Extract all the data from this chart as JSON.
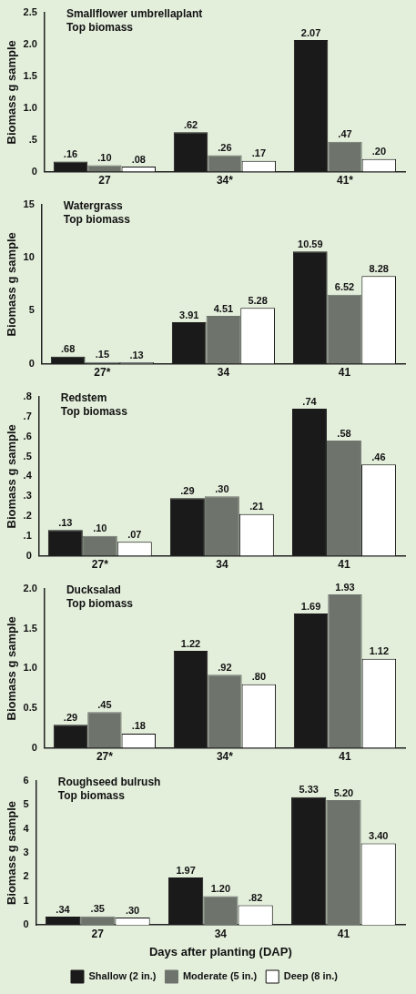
{
  "chart_data": [
    {
      "type": "bar",
      "title": "Smallflower umbrellaplant",
      "subtitle": "Top biomass",
      "ylabel": "Biomass g sample",
      "categories": [
        "27",
        "34*",
        "41*"
      ],
      "ylim": [
        0,
        2.5
      ],
      "yticks": [
        0,
        {
          "value": 0.5,
          "label": ".5"
        },
        {
          "value": 1,
          "label": "1.0"
        },
        {
          "value": 1.5,
          "label": "1.5"
        },
        {
          "value": 2,
          "label": "2.0"
        },
        {
          "value": 2.5,
          "label": "2.5"
        }
      ],
      "grid": false,
      "legend": false,
      "series": [
        {
          "color": "#1a1a1a",
          "values": [
            0.16,
            0.62,
            2.07
          ],
          "value_labels": [
            ".16",
            ".62",
            "2.07"
          ]
        },
        {
          "color": "#6e746c",
          "values": [
            0.1,
            0.26,
            0.47
          ],
          "value_labels": [
            ".10",
            ".26",
            ".47"
          ]
        },
        {
          "color": "#ffffff",
          "values": [
            0.08,
            0.17,
            0.2
          ],
          "value_labels": [
            ".08",
            ".17",
            ".20"
          ]
        }
      ]
    },
    {
      "type": "bar",
      "title": "Watergrass",
      "subtitle": "Top biomass",
      "ylabel": "Biomass g sample",
      "categories": [
        "27*",
        "34",
        "41"
      ],
      "ylim": [
        0,
        15
      ],
      "yticks": [
        0,
        5,
        10,
        15
      ],
      "grid": false,
      "legend": false,
      "series": [
        {
          "color": "#1a1a1a",
          "values": [
            0.68,
            3.91,
            10.59
          ],
          "value_labels": [
            ".68",
            "3.91",
            "10.59"
          ]
        },
        {
          "color": "#6e746c",
          "values": [
            0.15,
            4.51,
            6.52
          ],
          "value_labels": [
            ".15",
            "4.51",
            "6.52"
          ]
        },
        {
          "color": "#ffffff",
          "values": [
            0.13,
            5.28,
            8.28
          ],
          "value_labels": [
            ".13",
            "5.28",
            "8.28"
          ]
        }
      ]
    },
    {
      "type": "bar",
      "title": "Redstem",
      "subtitle": "Top biomass",
      "ylabel": "Biomass g sample",
      "categories": [
        "27*",
        "34",
        "41"
      ],
      "ylim": [
        0,
        0.8
      ],
      "yticks": [
        0,
        {
          "value": 0.1,
          "label": ".1"
        },
        {
          "value": 0.2,
          "label": ".2"
        },
        {
          "value": 0.3,
          "label": ".3"
        },
        {
          "value": 0.4,
          "label": ".4"
        },
        {
          "value": 0.5,
          "label": ".5"
        },
        {
          "value": 0.6,
          "label": ".6"
        },
        {
          "value": 0.7,
          "label": ".7"
        },
        {
          "value": 0.8,
          "label": ".8"
        }
      ],
      "grid": false,
      "legend": false,
      "series": [
        {
          "color": "#1a1a1a",
          "values": [
            0.13,
            0.29,
            0.74
          ],
          "value_labels": [
            ".13",
            ".29",
            ".74"
          ]
        },
        {
          "color": "#6e746c",
          "values": [
            0.1,
            0.3,
            0.58
          ],
          "value_labels": [
            ".10",
            ".30",
            ".58"
          ]
        },
        {
          "color": "#ffffff",
          "values": [
            0.07,
            0.21,
            0.46
          ],
          "value_labels": [
            ".07",
            ".21",
            ".46"
          ]
        }
      ]
    },
    {
      "type": "bar",
      "title": "Ducksalad",
      "subtitle": "Top biomass",
      "ylabel": "Biomass g sample",
      "categories": [
        "27*",
        "34*",
        "41"
      ],
      "ylim": [
        0,
        2.0
      ],
      "yticks": [
        0,
        0.5,
        {
          "value": 1,
          "label": "1.0"
        },
        1.5,
        {
          "value": 2,
          "label": "2.0"
        }
      ],
      "grid": false,
      "legend": false,
      "series": [
        {
          "color": "#1a1a1a",
          "values": [
            0.29,
            1.22,
            1.69
          ],
          "value_labels": [
            ".29",
            "1.22",
            "1.69"
          ]
        },
        {
          "color": "#6e746c",
          "values": [
            0.45,
            0.92,
            1.93
          ],
          "value_labels": [
            ".45",
            ".92",
            "1.93"
          ]
        },
        {
          "color": "#ffffff",
          "values": [
            0.18,
            0.8,
            1.12
          ],
          "value_labels": [
            ".18",
            ".80",
            "1.12"
          ]
        }
      ]
    },
    {
      "type": "bar",
      "title": "Roughseed bulrush",
      "subtitle": "Top biomass",
      "ylabel": "Biomass g sample",
      "xlabel": "Days after planting (DAP)",
      "categories": [
        "27",
        "34",
        "41"
      ],
      "ylim": [
        0,
        6
      ],
      "yticks": [
        0,
        1,
        2,
        3,
        4,
        5,
        6
      ],
      "grid": false,
      "legend": "bottom",
      "series": [
        {
          "name": "Shallow (2 in.)",
          "color": "#1a1a1a",
          "values": [
            0.34,
            1.97,
            5.33
          ],
          "value_labels": [
            ".34",
            "1.97",
            "5.33"
          ]
        },
        {
          "name": "Moderate (5 in.)",
          "color": "#6e746c",
          "values": [
            0.35,
            1.2,
            5.2
          ],
          "value_labels": [
            ".35",
            "1.20",
            "5.20"
          ]
        },
        {
          "name": "Deep (8 in.)",
          "color": "#ffffff",
          "values": [
            0.3,
            0.82,
            3.4
          ],
          "value_labels": [
            ".30",
            ".82",
            "3.40"
          ]
        }
      ]
    }
  ]
}
